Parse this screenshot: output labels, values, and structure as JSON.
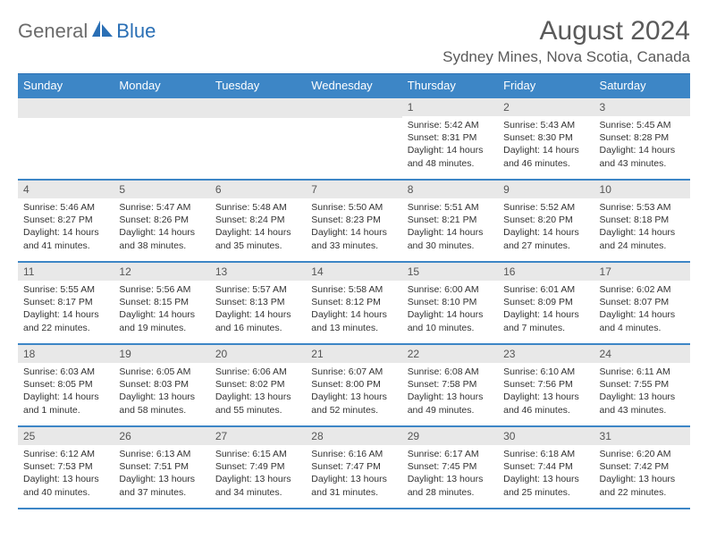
{
  "brand": {
    "part1": "General",
    "part2": "Blue"
  },
  "title": "August 2024",
  "location": "Sydney Mines, Nova Scotia, Canada",
  "colors": {
    "header_bg": "#3d86c6",
    "header_border": "#2a6fb5",
    "daynum_bg": "#e8e8e8",
    "text": "#333333",
    "logo_gray": "#6b6b6b",
    "logo_blue": "#2a6fb5"
  },
  "daysOfWeek": [
    "Sunday",
    "Monday",
    "Tuesday",
    "Wednesday",
    "Thursday",
    "Friday",
    "Saturday"
  ],
  "weeks": [
    [
      null,
      null,
      null,
      null,
      {
        "n": "1",
        "sr": "5:42 AM",
        "ss": "8:31 PM",
        "dl": "14 hours and 48 minutes."
      },
      {
        "n": "2",
        "sr": "5:43 AM",
        "ss": "8:30 PM",
        "dl": "14 hours and 46 minutes."
      },
      {
        "n": "3",
        "sr": "5:45 AM",
        "ss": "8:28 PM",
        "dl": "14 hours and 43 minutes."
      }
    ],
    [
      {
        "n": "4",
        "sr": "5:46 AM",
        "ss": "8:27 PM",
        "dl": "14 hours and 41 minutes."
      },
      {
        "n": "5",
        "sr": "5:47 AM",
        "ss": "8:26 PM",
        "dl": "14 hours and 38 minutes."
      },
      {
        "n": "6",
        "sr": "5:48 AM",
        "ss": "8:24 PM",
        "dl": "14 hours and 35 minutes."
      },
      {
        "n": "7",
        "sr": "5:50 AM",
        "ss": "8:23 PM",
        "dl": "14 hours and 33 minutes."
      },
      {
        "n": "8",
        "sr": "5:51 AM",
        "ss": "8:21 PM",
        "dl": "14 hours and 30 minutes."
      },
      {
        "n": "9",
        "sr": "5:52 AM",
        "ss": "8:20 PM",
        "dl": "14 hours and 27 minutes."
      },
      {
        "n": "10",
        "sr": "5:53 AM",
        "ss": "8:18 PM",
        "dl": "14 hours and 24 minutes."
      }
    ],
    [
      {
        "n": "11",
        "sr": "5:55 AM",
        "ss": "8:17 PM",
        "dl": "14 hours and 22 minutes."
      },
      {
        "n": "12",
        "sr": "5:56 AM",
        "ss": "8:15 PM",
        "dl": "14 hours and 19 minutes."
      },
      {
        "n": "13",
        "sr": "5:57 AM",
        "ss": "8:13 PM",
        "dl": "14 hours and 16 minutes."
      },
      {
        "n": "14",
        "sr": "5:58 AM",
        "ss": "8:12 PM",
        "dl": "14 hours and 13 minutes."
      },
      {
        "n": "15",
        "sr": "6:00 AM",
        "ss": "8:10 PM",
        "dl": "14 hours and 10 minutes."
      },
      {
        "n": "16",
        "sr": "6:01 AM",
        "ss": "8:09 PM",
        "dl": "14 hours and 7 minutes."
      },
      {
        "n": "17",
        "sr": "6:02 AM",
        "ss": "8:07 PM",
        "dl": "14 hours and 4 minutes."
      }
    ],
    [
      {
        "n": "18",
        "sr": "6:03 AM",
        "ss": "8:05 PM",
        "dl": "14 hours and 1 minute."
      },
      {
        "n": "19",
        "sr": "6:05 AM",
        "ss": "8:03 PM",
        "dl": "13 hours and 58 minutes."
      },
      {
        "n": "20",
        "sr": "6:06 AM",
        "ss": "8:02 PM",
        "dl": "13 hours and 55 minutes."
      },
      {
        "n": "21",
        "sr": "6:07 AM",
        "ss": "8:00 PM",
        "dl": "13 hours and 52 minutes."
      },
      {
        "n": "22",
        "sr": "6:08 AM",
        "ss": "7:58 PM",
        "dl": "13 hours and 49 minutes."
      },
      {
        "n": "23",
        "sr": "6:10 AM",
        "ss": "7:56 PM",
        "dl": "13 hours and 46 minutes."
      },
      {
        "n": "24",
        "sr": "6:11 AM",
        "ss": "7:55 PM",
        "dl": "13 hours and 43 minutes."
      }
    ],
    [
      {
        "n": "25",
        "sr": "6:12 AM",
        "ss": "7:53 PM",
        "dl": "13 hours and 40 minutes."
      },
      {
        "n": "26",
        "sr": "6:13 AM",
        "ss": "7:51 PM",
        "dl": "13 hours and 37 minutes."
      },
      {
        "n": "27",
        "sr": "6:15 AM",
        "ss": "7:49 PM",
        "dl": "13 hours and 34 minutes."
      },
      {
        "n": "28",
        "sr": "6:16 AM",
        "ss": "7:47 PM",
        "dl": "13 hours and 31 minutes."
      },
      {
        "n": "29",
        "sr": "6:17 AM",
        "ss": "7:45 PM",
        "dl": "13 hours and 28 minutes."
      },
      {
        "n": "30",
        "sr": "6:18 AM",
        "ss": "7:44 PM",
        "dl": "13 hours and 25 minutes."
      },
      {
        "n": "31",
        "sr": "6:20 AM",
        "ss": "7:42 PM",
        "dl": "13 hours and 22 minutes."
      }
    ]
  ],
  "labels": {
    "sunrise": "Sunrise:",
    "sunset": "Sunset:",
    "daylight": "Daylight:"
  }
}
